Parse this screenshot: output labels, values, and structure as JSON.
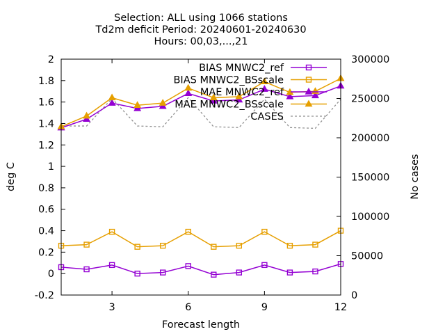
{
  "chart_data": {
    "type": "line",
    "title_lines": [
      "Selection: ALL using  1066 stations",
      "Td2m deficit   Period: 20240601-20240630",
      "Hours: 00,03,...,21"
    ],
    "xlabel": "Forecast length",
    "ylabel": "deg C",
    "y2label": "No cases",
    "xlim": [
      1,
      12
    ],
    "ylim": [
      -0.2,
      2
    ],
    "y2lim": [
      0,
      300000
    ],
    "xticks": [
      3,
      6,
      9,
      12
    ],
    "yticks": [
      -0.2,
      0,
      0.2,
      0.4,
      0.6,
      0.8,
      1,
      1.2,
      1.4,
      1.6,
      1.8,
      2
    ],
    "y2ticks": [
      0,
      50000,
      100000,
      150000,
      200000,
      250000,
      300000
    ],
    "legend_position": "top-right",
    "x": [
      1,
      2,
      3,
      4,
      5,
      6,
      7,
      8,
      9,
      10,
      11,
      12
    ],
    "series": [
      {
        "name": "BIAS MNWC2_ref",
        "legend_label": "BIAS MNWC2_ref",
        "color": "#9400d3",
        "marker": "square",
        "axis": "y",
        "values": [
          0.06,
          0.04,
          0.08,
          0.0,
          0.01,
          0.07,
          -0.01,
          0.01,
          0.08,
          0.01,
          0.02,
          0.09
        ]
      },
      {
        "name": "BIAS MNWC2_BSscale",
        "legend_label": "BIAS MNWC2_BSscale",
        "color": "#e69f00",
        "marker": "square",
        "axis": "y",
        "values": [
          0.26,
          0.27,
          0.39,
          0.25,
          0.26,
          0.39,
          0.25,
          0.26,
          0.39,
          0.26,
          0.27,
          0.4
        ]
      },
      {
        "name": "MAE MNWC2_ref",
        "legend_label": "MAE MNWC2_ref",
        "color": "#9400d3",
        "marker": "triangle",
        "axis": "y",
        "values": [
          1.36,
          1.44,
          1.59,
          1.54,
          1.56,
          1.68,
          1.61,
          1.62,
          1.72,
          1.65,
          1.66,
          1.75
        ]
      },
      {
        "name": "MAE MNWC2_BSscale",
        "legend_label": "MAE MNWC2_BSscale",
        "color": "#e69f00",
        "marker": "triangle",
        "axis": "y",
        "values": [
          1.37,
          1.47,
          1.64,
          1.57,
          1.59,
          1.73,
          1.64,
          1.65,
          1.79,
          1.69,
          1.7,
          1.82
        ]
      },
      {
        "name": "CASES",
        "legend_label": "CASES",
        "color": "#909090",
        "marker": "none",
        "dashed": true,
        "axis": "y2",
        "values": [
          215000,
          215000,
          250000,
          215000,
          214000,
          251000,
          214000,
          213000,
          249000,
          213000,
          212000,
          249000
        ]
      }
    ]
  }
}
